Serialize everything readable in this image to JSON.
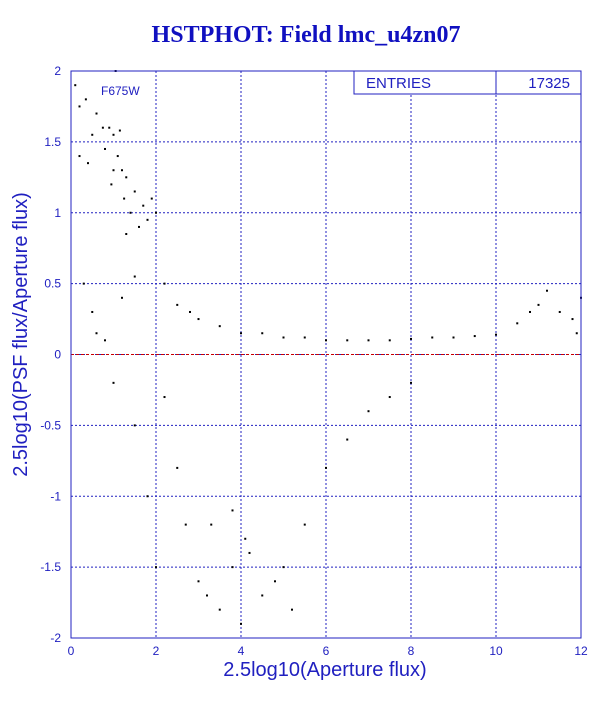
{
  "title": "HSTPHOT: Field lmc_u4zn07",
  "colors": {
    "title": "#1010c0",
    "axes": "#2020c0",
    "grid": "#2020c0",
    "points": "#000000",
    "zero_line": "#cc0000",
    "background": "#ffffff"
  },
  "stats_box": {
    "label": "ENTRIES",
    "value": "17325"
  },
  "chart_data": {
    "type": "scatter",
    "title": "HSTPHOT: Field lmc_u4zn07",
    "annotation": "F675W",
    "xlabel": "2.5log10(Aperture flux)",
    "ylabel": "2.5log10(PSF flux/Aperture flux)",
    "xlim": [
      0,
      12
    ],
    "ylim": [
      -2,
      2
    ],
    "x_ticks": [
      "0",
      "2",
      "4",
      "6",
      "8",
      "10",
      "12"
    ],
    "y_ticks": [
      "2",
      "1.5",
      "1",
      "0.5",
      "0",
      "-0.5",
      "-1",
      "-1.5",
      "-2"
    ],
    "grid": true,
    "reference_line_y": 0,
    "entries": 17325,
    "series": [
      {
        "values": [
          [
            0.1,
            1.9
          ],
          [
            0.2,
            1.75
          ],
          [
            0.35,
            1.8
          ],
          [
            0.5,
            1.55
          ],
          [
            0.6,
            1.7
          ],
          [
            0.75,
            1.6
          ],
          [
            0.8,
            1.45
          ],
          [
            0.9,
            1.6
          ],
          [
            1.0,
            1.55
          ],
          [
            1.05,
            2.0
          ],
          [
            1.1,
            1.4
          ],
          [
            1.15,
            1.58
          ],
          [
            1.2,
            1.3
          ],
          [
            0.95,
            1.2
          ],
          [
            1.3,
            1.25
          ],
          [
            1.0,
            1.3
          ],
          [
            1.25,
            1.1
          ],
          [
            1.4,
            1.0
          ],
          [
            1.5,
            1.15
          ],
          [
            1.6,
            0.9
          ],
          [
            1.7,
            1.05
          ],
          [
            1.8,
            0.95
          ],
          [
            1.3,
            0.85
          ],
          [
            1.9,
            1.1
          ],
          [
            2.0,
            1.0
          ],
          [
            0.4,
            1.35
          ],
          [
            0.2,
            1.4
          ],
          [
            0.3,
            0.5
          ],
          [
            0.5,
            0.3
          ],
          [
            0.8,
            0.1
          ],
          [
            1.0,
            -0.2
          ],
          [
            1.2,
            0.4
          ],
          [
            1.5,
            0.55
          ],
          [
            0.6,
            0.15
          ],
          [
            2.2,
            0.5
          ],
          [
            2.5,
            0.35
          ],
          [
            2.8,
            0.3
          ],
          [
            3.0,
            0.25
          ],
          [
            3.5,
            0.2
          ],
          [
            4.0,
            0.15
          ],
          [
            4.5,
            0.15
          ],
          [
            5.0,
            0.12
          ],
          [
            5.5,
            0.12
          ],
          [
            6.0,
            0.1
          ],
          [
            6.5,
            0.1
          ],
          [
            7.0,
            0.1
          ],
          [
            7.5,
            0.1
          ],
          [
            8.0,
            0.11
          ],
          [
            8.5,
            0.12
          ],
          [
            9.0,
            0.12
          ],
          [
            9.5,
            0.13
          ],
          [
            10.0,
            0.14
          ],
          [
            10.5,
            0.22
          ],
          [
            10.8,
            0.3
          ],
          [
            11.0,
            0.35
          ],
          [
            11.2,
            0.45
          ],
          [
            11.5,
            0.3
          ],
          [
            11.8,
            0.25
          ],
          [
            11.9,
            0.15
          ],
          [
            12.0,
            0.4
          ],
          [
            2.2,
            -0.3
          ],
          [
            2.5,
            -0.8
          ],
          [
            2.7,
            -1.2
          ],
          [
            3.0,
            -1.6
          ],
          [
            3.2,
            -1.7
          ],
          [
            3.5,
            -1.8
          ],
          [
            3.8,
            -1.5
          ],
          [
            4.0,
            -1.9
          ],
          [
            4.2,
            -1.4
          ],
          [
            4.5,
            -1.7
          ],
          [
            5.0,
            -1.5
          ],
          [
            5.5,
            -1.2
          ],
          [
            6.0,
            -0.8
          ],
          [
            6.5,
            -0.6
          ],
          [
            7.0,
            -0.4
          ],
          [
            7.5,
            -0.3
          ],
          [
            8.0,
            -0.2
          ],
          [
            1.5,
            -0.5
          ],
          [
            1.8,
            -1.0
          ],
          [
            2.0,
            -1.5
          ],
          [
            5.2,
            -1.8
          ],
          [
            4.8,
            -1.6
          ],
          [
            3.3,
            -1.2
          ],
          [
            3.8,
            -1.1
          ],
          [
            4.1,
            -1.3
          ]
        ]
      }
    ]
  }
}
